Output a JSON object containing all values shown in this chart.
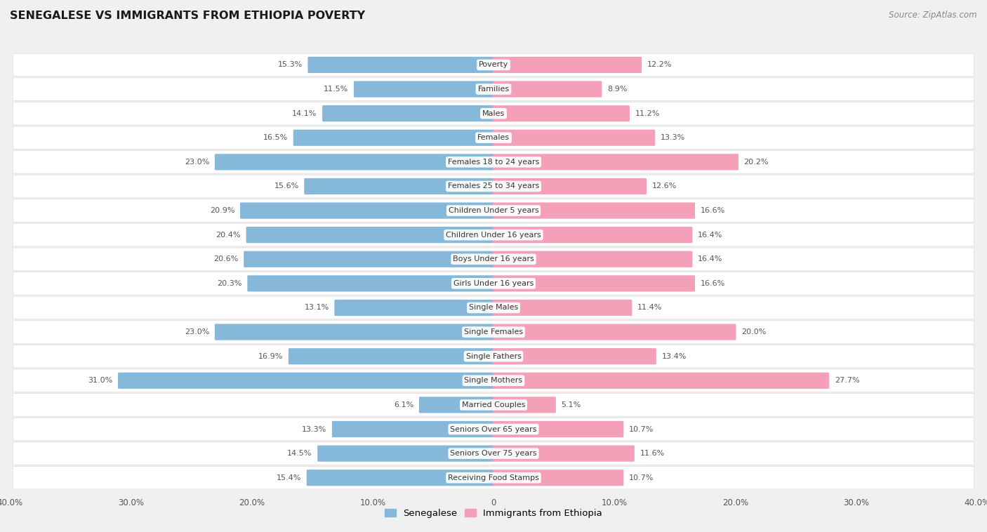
{
  "title": "SENEGALESE VS IMMIGRANTS FROM ETHIOPIA POVERTY",
  "source": "Source: ZipAtlas.com",
  "categories": [
    "Poverty",
    "Families",
    "Males",
    "Females",
    "Females 18 to 24 years",
    "Females 25 to 34 years",
    "Children Under 5 years",
    "Children Under 16 years",
    "Boys Under 16 years",
    "Girls Under 16 years",
    "Single Males",
    "Single Females",
    "Single Fathers",
    "Single Mothers",
    "Married Couples",
    "Seniors Over 65 years",
    "Seniors Over 75 years",
    "Receiving Food Stamps"
  ],
  "senegalese": [
    15.3,
    11.5,
    14.1,
    16.5,
    23.0,
    15.6,
    20.9,
    20.4,
    20.6,
    20.3,
    13.1,
    23.0,
    16.9,
    31.0,
    6.1,
    13.3,
    14.5,
    15.4
  ],
  "ethiopia": [
    12.2,
    8.9,
    11.2,
    13.3,
    20.2,
    12.6,
    16.6,
    16.4,
    16.4,
    16.6,
    11.4,
    20.0,
    13.4,
    27.7,
    5.1,
    10.7,
    11.6,
    10.7
  ],
  "senegalese_color": "#85b8d9",
  "ethiopia_color": "#f4a0b8",
  "background_color": "#f0f0f0",
  "bar_background": "#ffffff",
  "xlim": 40.0,
  "legend_labels": [
    "Senegalese",
    "Immigrants from Ethiopia"
  ],
  "x_tick_labels": [
    "40.0%",
    "30.0%",
    "20.0%",
    "10.0%",
    "0",
    "10.0%",
    "20.0%",
    "30.0%",
    "40.0%"
  ],
  "x_tick_positions": [
    -40,
    -30,
    -20,
    -10,
    0,
    10,
    20,
    30,
    40
  ]
}
